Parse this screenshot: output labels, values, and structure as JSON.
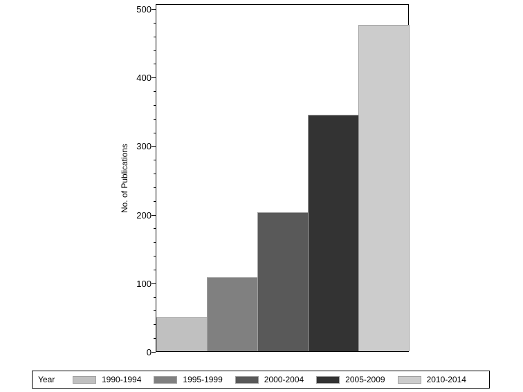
{
  "chart_data": {
    "type": "bar",
    "title": "",
    "xlabel": "",
    "ylabel": "No. of Publications",
    "ylim": [
      0,
      500
    ],
    "yticks": [
      0,
      100,
      200,
      300,
      400,
      500
    ],
    "grid": false,
    "legend_position": "bottom",
    "legend_title": "Year",
    "categories": [
      "1990-1994",
      "1995-1999",
      "2000-2004",
      "2005-2009",
      "2010-2014"
    ],
    "values": [
      49,
      108,
      203,
      345,
      476
    ],
    "colors": [
      "#c0c0c0",
      "#808080",
      "#595959",
      "#333333",
      "#cccccc"
    ]
  },
  "axis": {
    "ylabel": "No. of Publications",
    "ticks": [
      "0",
      "100",
      "200",
      "300",
      "400",
      "500"
    ]
  },
  "legend": {
    "title": "Year",
    "items": [
      {
        "label": "1990-1994",
        "color": "#c0c0c0"
      },
      {
        "label": "1995-1999",
        "color": "#808080"
      },
      {
        "label": "2000-2004",
        "color": "#595959"
      },
      {
        "label": "2005-2009",
        "color": "#333333"
      },
      {
        "label": "2010-2014",
        "color": "#cccccc"
      }
    ]
  }
}
